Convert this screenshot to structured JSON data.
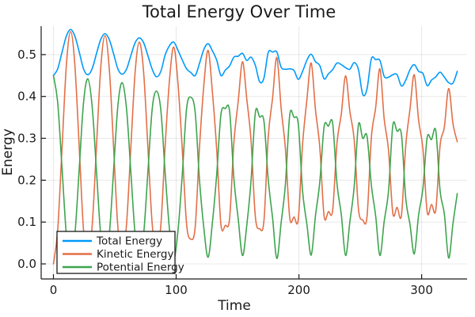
{
  "title": "Total Energy Over Time",
  "chart_data": {
    "type": "line",
    "title": "Total Energy Over Time",
    "xlabel": "Time",
    "ylabel": "Energy",
    "xlim": [
      -10,
      337
    ],
    "ylim": [
      -0.036,
      0.568
    ],
    "grid": true,
    "legend_position": "bottom-left",
    "background_color": "#ffffff",
    "axis_color": "#1a1a1a",
    "grid_color": "rgba(0,0,0,0.09)",
    "x_ticks": {
      "values": [
        0,
        100,
        200,
        300
      ],
      "labels": [
        "0",
        "100",
        "200",
        "300"
      ]
    },
    "y_ticks": {
      "values": [
        0.0,
        0.1,
        0.2,
        0.3,
        0.4,
        0.5
      ],
      "labels": [
        "0.0",
        "0.1",
        "0.2",
        "0.3",
        "0.4",
        "0.5"
      ]
    },
    "x": [
      0,
      3.5,
      7,
      10.5,
      14,
      17.5,
      21,
      24.5,
      28,
      31.5,
      35,
      38.5,
      42,
      45.5,
      49,
      52.5,
      56,
      59.5,
      63,
      66.5,
      70,
      73.5,
      77,
      80.5,
      84,
      87.5,
      91,
      94.5,
      98,
      101.5,
      105,
      108.5,
      112,
      115.5,
      119,
      122.5,
      126,
      129.5,
      133,
      136.5,
      140,
      143.5,
      147,
      150.5,
      154,
      157.5,
      161,
      164.5,
      168,
      171.5,
      175,
      178.5,
      182,
      185.5,
      189,
      192.5,
      196,
      199.5,
      203,
      206.5,
      210,
      213.5,
      217,
      220.5,
      224,
      227.5,
      231,
      234.5,
      238,
      241.5,
      245,
      248.5,
      252,
      255.5,
      259,
      262.5,
      266,
      269.5,
      273,
      276.5,
      280,
      283.5,
      287,
      290.5,
      294,
      297.5,
      301,
      304.5,
      308,
      311.5,
      315,
      318.5,
      322,
      325.5,
      329
    ],
    "series": [
      {
        "name": "Total Energy",
        "color": "#009AFA",
        "values": [
          0.45,
          0.466,
          0.506,
          0.544,
          0.56,
          0.544,
          0.506,
          0.466,
          0.452,
          0.466,
          0.502,
          0.536,
          0.55,
          0.536,
          0.502,
          0.466,
          0.453,
          0.465,
          0.497,
          0.528,
          0.54,
          0.528,
          0.497,
          0.465,
          0.447,
          0.46,
          0.499,
          0.521,
          0.53,
          0.51,
          0.487,
          0.466,
          0.457,
          0.45,
          0.479,
          0.512,
          0.526,
          0.509,
          0.487,
          0.45,
          0.463,
          0.473,
          0.494,
          0.496,
          0.503,
          0.486,
          0.494,
          0.474,
          0.435,
          0.444,
          0.505,
          0.506,
          0.506,
          0.47,
          0.465,
          0.466,
          0.462,
          0.441,
          0.46,
          0.487,
          0.501,
          0.483,
          0.474,
          0.442,
          0.454,
          0.464,
          0.48,
          0.476,
          0.469,
          0.465,
          0.481,
          0.464,
          0.405,
          0.418,
          0.49,
          0.488,
          0.486,
          0.448,
          0.446,
          0.452,
          0.452,
          0.425,
          0.439,
          0.464,
          0.476,
          0.46,
          0.455,
          0.426,
          0.439,
          0.447,
          0.458,
          0.446,
          0.433,
          0.432,
          0.46
        ]
      },
      {
        "name": "Kinetic Energy",
        "color": "#E36F47",
        "values": [
          0.0,
          0.081,
          0.278,
          0.474,
          0.555,
          0.474,
          0.278,
          0.081,
          0.01,
          0.088,
          0.278,
          0.467,
          0.545,
          0.467,
          0.278,
          0.088,
          0.02,
          0.094,
          0.275,
          0.456,
          0.53,
          0.456,
          0.275,
          0.094,
          0.034,
          0.093,
          0.281,
          0.437,
          0.518,
          0.429,
          0.272,
          0.095,
          0.059,
          0.089,
          0.279,
          0.425,
          0.51,
          0.41,
          0.274,
          0.093,
          0.092,
          0.108,
          0.289,
          0.387,
          0.483,
          0.394,
          0.295,
          0.112,
          0.084,
          0.103,
          0.303,
          0.396,
          0.493,
          0.372,
          0.275,
          0.11,
          0.112,
          0.107,
          0.286,
          0.393,
          0.48,
          0.368,
          0.279,
          0.114,
          0.125,
          0.128,
          0.289,
          0.358,
          0.449,
          0.365,
          0.296,
          0.131,
          0.105,
          0.113,
          0.302,
          0.373,
          0.466,
          0.346,
          0.271,
          0.121,
          0.135,
          0.116,
          0.282,
          0.37,
          0.452,
          0.343,
          0.275,
          0.124,
          0.142,
          0.129,
          0.283,
          0.327,
          0.419,
          0.335,
          0.292
        ]
      },
      {
        "name": "Potential Energy",
        "color": "#3EA44E",
        "values": [
          0.45,
          0.385,
          0.228,
          0.07,
          0.005,
          0.07,
          0.228,
          0.385,
          0.442,
          0.378,
          0.224,
          0.069,
          0.005,
          0.069,
          0.224,
          0.378,
          0.433,
          0.371,
          0.222,
          0.072,
          0.01,
          0.072,
          0.222,
          0.371,
          0.413,
          0.367,
          0.218,
          0.084,
          0.012,
          0.081,
          0.215,
          0.371,
          0.398,
          0.361,
          0.2,
          0.087,
          0.016,
          0.099,
          0.213,
          0.357,
          0.371,
          0.365,
          0.205,
          0.109,
          0.02,
          0.092,
          0.199,
          0.362,
          0.351,
          0.341,
          0.202,
          0.11,
          0.013,
          0.098,
          0.19,
          0.356,
          0.35,
          0.334,
          0.174,
          0.094,
          0.021,
          0.115,
          0.195,
          0.328,
          0.329,
          0.336,
          0.191,
          0.118,
          0.02,
          0.1,
          0.185,
          0.333,
          0.3,
          0.305,
          0.188,
          0.115,
          0.02,
          0.102,
          0.175,
          0.331,
          0.317,
          0.309,
          0.157,
          0.094,
          0.024,
          0.117,
          0.18,
          0.302,
          0.297,
          0.318,
          0.175,
          0.119,
          0.014,
          0.097,
          0.168
        ]
      }
    ]
  }
}
